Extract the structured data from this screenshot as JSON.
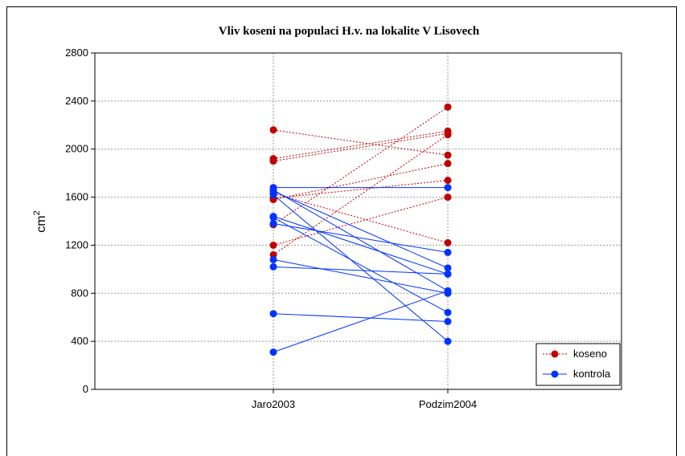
{
  "chart_data": {
    "type": "line",
    "title": "Vliv koseni na populaci H.v. na lokalite V Lisovech",
    "xlabel": "",
    "ylabel_base": "cm",
    "ylabel_sup": "2",
    "categories": [
      "Jaro2003",
      "Podzim2004"
    ],
    "ylim": [
      0,
      2800
    ],
    "yticks": [
      0,
      400,
      800,
      1200,
      1600,
      2000,
      2400,
      2800
    ],
    "grid": true,
    "legend_position": "bottom-right",
    "series": [
      {
        "name": "koseno",
        "color": "#c00000",
        "line_style": "dotted",
        "pairs": [
          [
            2160,
            1950
          ],
          [
            1920,
            2150
          ],
          [
            1900,
            2130
          ],
          [
            1630,
            1220
          ],
          [
            1590,
            1740
          ],
          [
            1580,
            1880
          ],
          [
            1370,
            2350
          ],
          [
            1200,
            1600
          ],
          [
            1120,
            2120
          ]
        ]
      },
      {
        "name": "kontrola",
        "color": "#0033ff",
        "line_style": "solid",
        "pairs": [
          [
            1680,
            1680
          ],
          [
            1660,
            820
          ],
          [
            1650,
            1010
          ],
          [
            1620,
            400
          ],
          [
            1440,
            960
          ],
          [
            1430,
            640
          ],
          [
            1380,
            1140
          ],
          [
            1080,
            800
          ],
          [
            1020,
            960
          ],
          [
            630,
            565
          ],
          [
            310,
            820
          ]
        ]
      }
    ]
  }
}
